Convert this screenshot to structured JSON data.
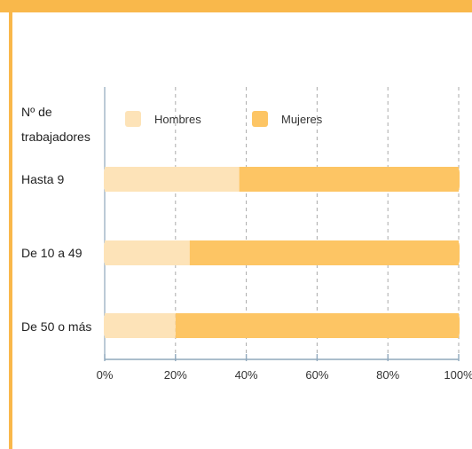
{
  "chart_data": {
    "type": "bar",
    "orientation": "horizontal",
    "stacked": true,
    "percent": true,
    "header_label_lines": [
      "Nº de",
      "trabajadores"
    ],
    "categories": [
      "Hasta 9",
      "De 10 a 49",
      "De 50 o más"
    ],
    "series": [
      {
        "name": "Hombres",
        "values": [
          38,
          24,
          20
        ],
        "color": "#fde3b8"
      },
      {
        "name": "Mujeres",
        "values": [
          62,
          76,
          80
        ],
        "color": "#fdc564"
      }
    ],
    "xticks": [
      "0%",
      "20%",
      "40%",
      "60%",
      "80%",
      "100%"
    ],
    "xlim": [
      0,
      100
    ],
    "grid": "vertical-dashed",
    "legend_position": "top"
  },
  "colors": {
    "accent": "#f9b84b",
    "axis": "#8fa8bc",
    "grid": "#aaaaaa"
  }
}
